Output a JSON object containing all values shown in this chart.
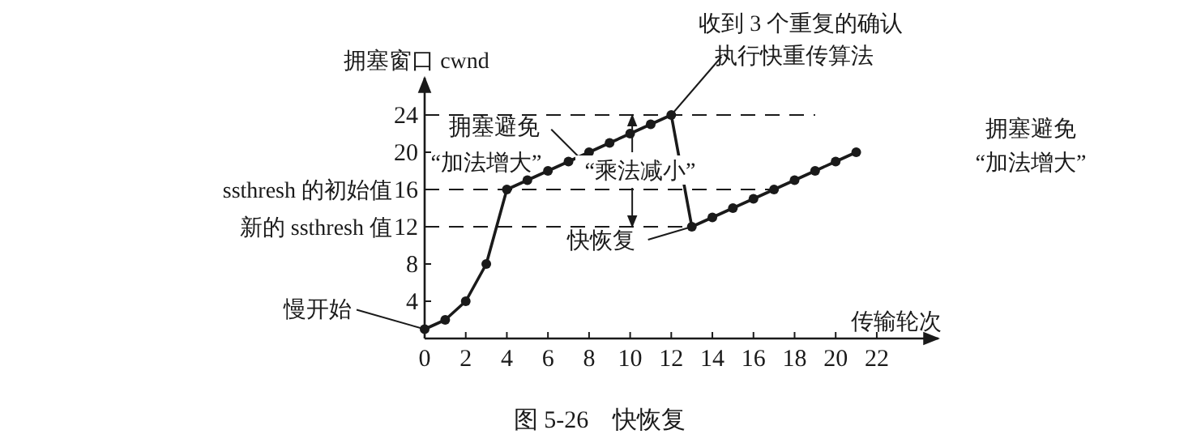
{
  "chart_data": {
    "type": "line",
    "title": "图 5-26　快恢复",
    "xlabel": "传输轮次",
    "ylabel": "拥塞窗口 cwnd",
    "x": [
      0,
      1,
      2,
      3,
      4,
      5,
      6,
      7,
      8,
      9,
      10,
      11,
      12,
      13,
      14,
      15,
      16,
      17,
      18,
      19,
      20,
      21
    ],
    "series": [
      {
        "color": "#1a1a1a",
        "values": [
          1,
          2,
          4,
          8,
          16,
          17,
          18,
          19,
          20,
          21,
          22,
          23,
          24,
          12,
          13,
          14,
          15,
          16,
          17,
          18,
          19,
          20
        ]
      }
    ],
    "marker": "circle",
    "line_style": "solid",
    "grid": false,
    "xlim": [
      0,
      25
    ],
    "ylim": [
      0,
      28
    ],
    "xticks": [
      0,
      2,
      4,
      6,
      8,
      10,
      12,
      14,
      16,
      18,
      20,
      22
    ],
    "yticks": [
      4,
      8,
      12,
      16,
      20,
      24
    ],
    "ref_lines": [
      {
        "axis": "y",
        "value": 24,
        "label": null,
        "line_style": "dashed"
      },
      {
        "axis": "y",
        "value": 16,
        "label": "ssthresh 的初始值",
        "line_style": "dashed"
      },
      {
        "axis": "y",
        "value": 12,
        "label": "新的 ssthresh 值",
        "line_style": "dashed"
      }
    ],
    "annotations": [
      {
        "text": "慢开始",
        "x": 0,
        "y": 1
      },
      {
        "text": "拥塞避免",
        "x": 7.5,
        "y": 19.5
      },
      "“加法增大”",
      {
        "text": "收到 3 个重复的确认",
        "x": 12,
        "y": 24
      },
      "执行快重传算法",
      {
        "text": "快恢复",
        "x": 13,
        "y": 12
      },
      "拥塞避免",
      "“加法增大”",
      {
        "text": "“乘法减小”",
        "x": 10.1,
        "y": 24
      }
    ]
  }
}
